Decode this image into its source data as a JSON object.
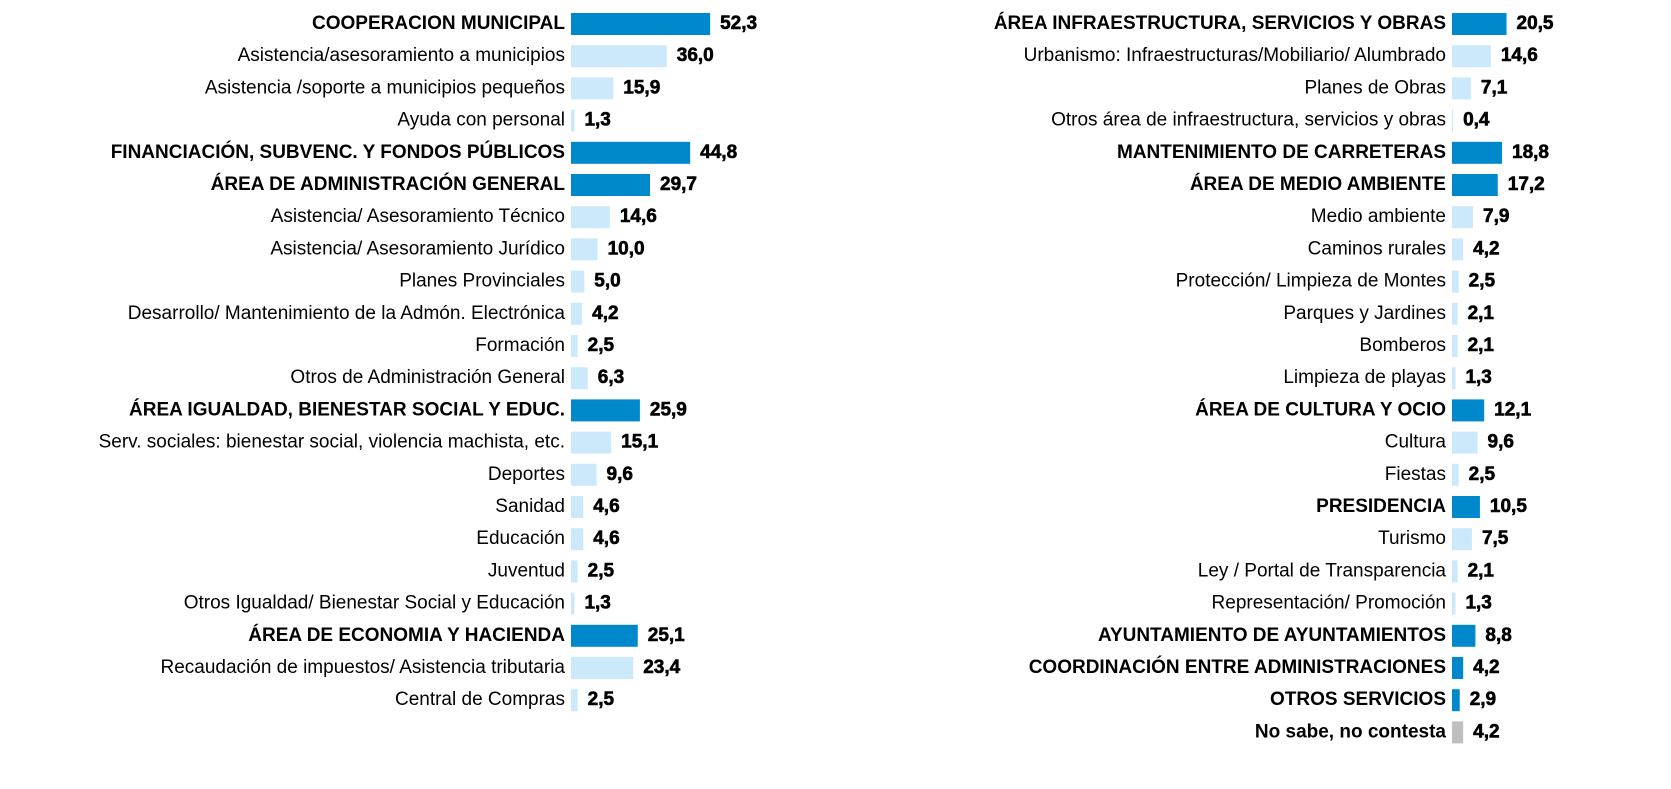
{
  "chart_data": [
    {
      "type": "bar",
      "orientation": "horizontal",
      "categories": [
        "COOPERACION MUNICIPAL",
        "Asistencia/asesoramiento a municipios",
        "Asistencia /soporte a municipios pequeños",
        "Ayuda con personal",
        "FINANCIACIÓN, SUBVENC. Y FONDOS PÚBLICOS",
        "ÁREA DE ADMINISTRACIÓN GENERAL",
        "Asistencia/ Asesoramiento Técnico",
        "Asistencia/ Asesoramiento Jurídico",
        "Planes Provinciales",
        "Desarrollo/ Mantenimiento de la Admón. Electrónica",
        "Formación",
        "Otros de Administración General",
        "ÁREA IGUALDAD, BIENESTAR SOCIAL Y EDUC.",
        "Serv. sociales: bienestar social, violencia machista, etc.",
        "Deportes",
        "Sanidad",
        "Educación",
        "Juventud",
        "Otros Igualdad/ Bienestar Social y Educación",
        "ÁREA DE ECONOMIA Y HACIENDA",
        "Recaudación de impuestos/ Asistencia tributaria",
        "Central de Compras"
      ],
      "values": [
        52.3,
        36.0,
        15.9,
        1.3,
        44.8,
        29.7,
        14.6,
        10.0,
        5.0,
        4.2,
        2.5,
        6.3,
        25.9,
        15.1,
        9.6,
        4.6,
        4.6,
        2.5,
        1.3,
        25.1,
        23.4,
        2.5
      ],
      "value_labels": [
        "52,3",
        "36,0",
        "15,9",
        "1,3",
        "44,8",
        "29,7",
        "14,6",
        "10,0",
        "5,0",
        "4,2",
        "2,5",
        "6,3",
        "25,9",
        "15,1",
        "9,6",
        "4,6",
        "4,6",
        "2,5",
        "1,3",
        "25,1",
        "23,4",
        "2,5"
      ],
      "colors": [
        "#0088cc",
        "#cce9fb",
        "#cce9fb",
        "#cce9fb",
        "#0088cc",
        "#0088cc",
        "#cce9fb",
        "#cce9fb",
        "#cce9fb",
        "#cce9fb",
        "#cce9fb",
        "#cce9fb",
        "#0088cc",
        "#cce9fb",
        "#cce9fb",
        "#cce9fb",
        "#cce9fb",
        "#cce9fb",
        "#cce9fb",
        "#0088cc",
        "#cce9fb",
        "#cce9fb"
      ],
      "emphasis": [
        true,
        false,
        false,
        false,
        true,
        true,
        false,
        false,
        false,
        false,
        false,
        false,
        true,
        false,
        false,
        false,
        false,
        false,
        false,
        true,
        false,
        false
      ]
    },
    {
      "type": "bar",
      "orientation": "horizontal",
      "categories": [
        "ÁREA INFRAESTRUCTURA, SERVICIOS Y OBRAS",
        "Urbanismo: Infraestructuras/Mobiliario/ Alumbrado",
        "Planes de Obras",
        "Otros área de infraestructura, servicios y obras",
        "MANTENIMIENTO DE CARRETERAS",
        "ÁREA DE MEDIO AMBIENTE",
        "Medio ambiente",
        "Caminos rurales",
        "Protección/ Limpieza de Montes",
        "Parques y Jardines",
        "Bomberos",
        "Limpieza de playas",
        "ÁREA DE CULTURA Y OCIO",
        "Cultura",
        "Fiestas",
        "PRESIDENCIA",
        "Turismo",
        "Ley / Portal de Transparencia",
        "Representación/ Promoción",
        "AYUNTAMIENTO DE AYUNTAMIENTOS",
        "COORDINACIÓN ENTRE ADMINISTRACIONES",
        "OTROS SERVICIOS",
        "No sabe, no contesta"
      ],
      "values": [
        20.5,
        14.6,
        7.1,
        0.4,
        18.8,
        17.2,
        7.9,
        4.2,
        2.5,
        2.1,
        2.1,
        1.3,
        12.1,
        9.6,
        2.5,
        10.5,
        7.5,
        2.1,
        1.3,
        8.8,
        4.2,
        2.9,
        4.2
      ],
      "value_labels": [
        "20,5",
        "14,6",
        "7,1",
        "0,4",
        "18,8",
        "17,2",
        "7,9",
        "4,2",
        "2,5",
        "2,1",
        "2,1",
        "1,3",
        "12,1",
        "9,6",
        "2,5",
        "10,5",
        "7,5",
        "2,1",
        "1,3",
        "8,8",
        "4,2",
        "2,9",
        "4,2"
      ],
      "colors": [
        "#0088cc",
        "#cce9fb",
        "#cce9fb",
        "#cce9fb",
        "#0088cc",
        "#0088cc",
        "#cce9fb",
        "#cce9fb",
        "#cce9fb",
        "#cce9fb",
        "#cce9fb",
        "#cce9fb",
        "#0088cc",
        "#cce9fb",
        "#cce9fb",
        "#0088cc",
        "#cce9fb",
        "#cce9fb",
        "#cce9fb",
        "#0088cc",
        "#0088cc",
        "#0088cc",
        "#bfbfbf"
      ],
      "emphasis": [
        true,
        false,
        false,
        false,
        true,
        true,
        false,
        false,
        false,
        false,
        false,
        false,
        true,
        false,
        false,
        true,
        false,
        false,
        false,
        true,
        true,
        true,
        true
      ]
    }
  ]
}
